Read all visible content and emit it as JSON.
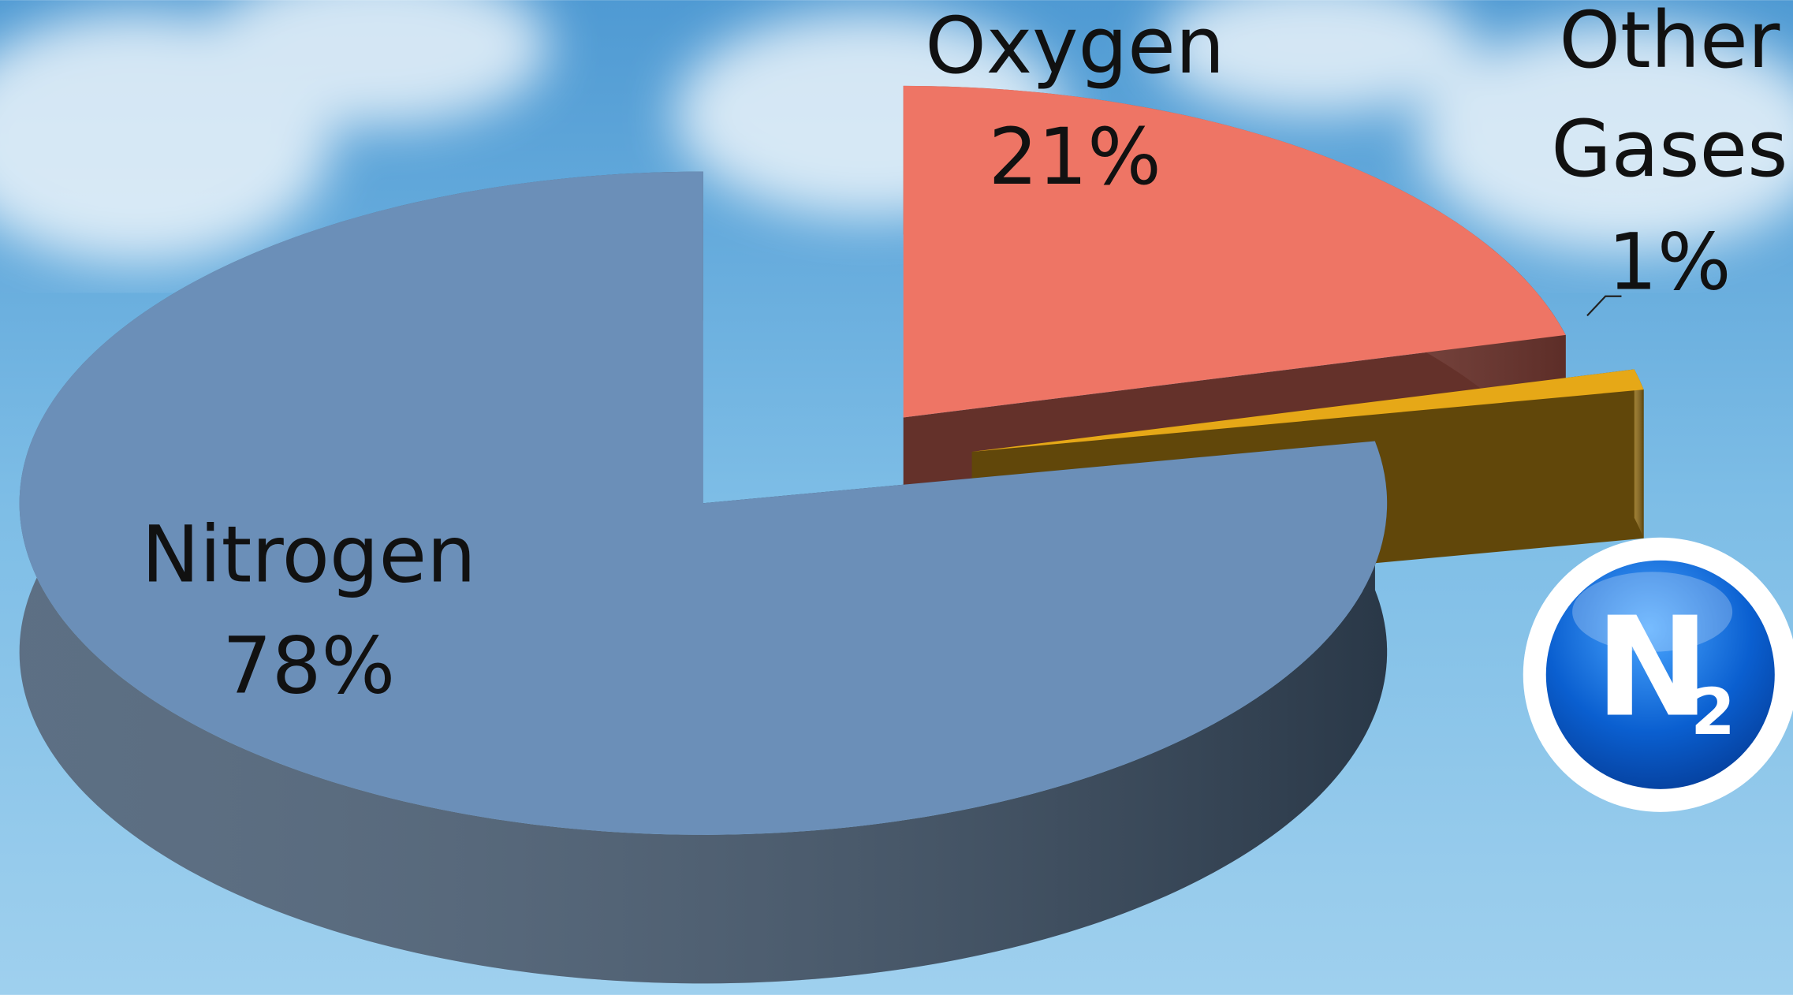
{
  "chart_data": {
    "type": "pie3d",
    "categories": [
      "Nitrogen",
      "Oxygen",
      "Other Gases"
    ],
    "values": [
      78,
      21,
      1
    ],
    "value_labels": [
      "78%",
      "21%",
      "1%"
    ],
    "colors": [
      "#6b8fb8",
      "#ee7565",
      "#e6a817"
    ]
  },
  "badge": {
    "symbol": "N",
    "subscript": "2"
  }
}
